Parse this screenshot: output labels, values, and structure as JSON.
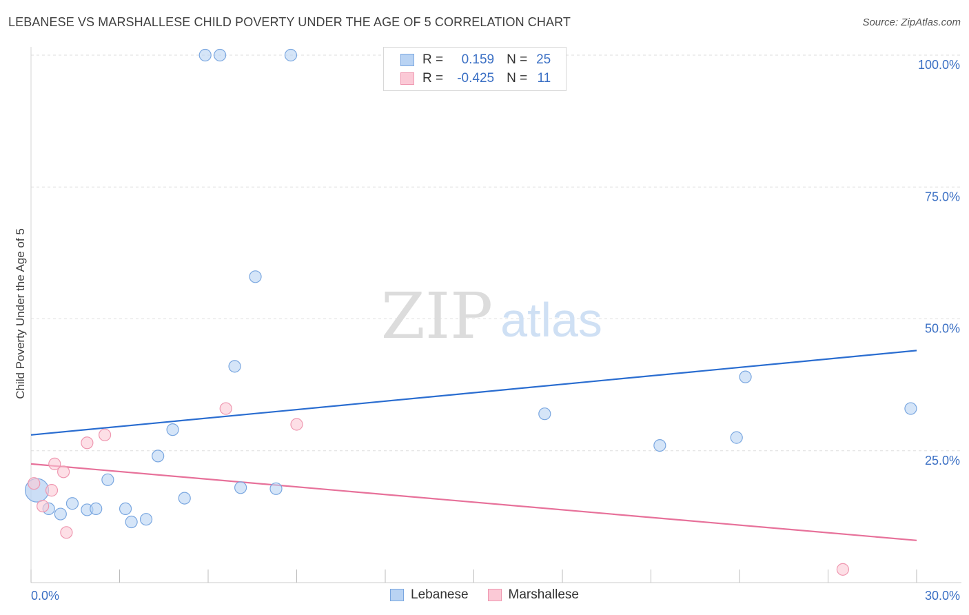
{
  "title": "LEBANESE VS MARSHALLESE CHILD POVERTY UNDER THE AGE OF 5 CORRELATION CHART",
  "source": "Source: ZipAtlas.com",
  "watermark": {
    "zip": "ZIP",
    "atlas": "atlas"
  },
  "stats": [
    {
      "r_label": "R =",
      "r_value": "0.159",
      "n_label": "N =",
      "n_value": "25",
      "color": "#b9d3f3",
      "border": "#7aa7e0"
    },
    {
      "r_label": "R =",
      "r_value": "-0.425",
      "n_label": "N =",
      "n_value": "11",
      "color": "#fbc9d6",
      "border": "#ef97b0"
    }
  ],
  "chart_data": {
    "type": "scatter",
    "ylabel": "Child Poverty Under the Age of 5",
    "xlim": [
      0,
      30
    ],
    "ylim": [
      0,
      100
    ],
    "x_tick_labels": [
      "0.0%",
      "30.0%"
    ],
    "y_tick_labels": [
      {
        "value": 25,
        "label": "25.0%"
      },
      {
        "value": 50,
        "label": "50.0%"
      },
      {
        "value": 75,
        "label": "75.0%"
      },
      {
        "value": 100,
        "label": "100.0%"
      }
    ],
    "grid": true,
    "legend_position": "bottom-center",
    "series": [
      {
        "name": "Lebanese",
        "color": "#b9d3f3",
        "stroke": "#7aa7e0",
        "line_color": "#2a6dd0",
        "trend": [
          [
            0,
            28.0
          ],
          [
            30,
            44.0
          ]
        ],
        "points": [
          [
            0.2,
            17.5
          ],
          [
            0.6,
            14.0
          ],
          [
            1.0,
            13.0
          ],
          [
            1.4,
            15.0
          ],
          [
            1.9,
            13.8
          ],
          [
            2.2,
            14.0
          ],
          [
            2.6,
            19.5
          ],
          [
            3.2,
            14.0
          ],
          [
            3.4,
            11.5
          ],
          [
            3.9,
            12.0
          ],
          [
            4.3,
            24.0
          ],
          [
            4.8,
            29.0
          ],
          [
            5.2,
            16.0
          ],
          [
            5.9,
            100.0
          ],
          [
            6.4,
            100.0
          ],
          [
            6.9,
            41.0
          ],
          [
            7.1,
            18.0
          ],
          [
            7.6,
            58.0
          ],
          [
            8.3,
            17.8
          ],
          [
            8.8,
            100.0
          ],
          [
            17.4,
            32.0
          ],
          [
            21.3,
            26.0
          ],
          [
            23.9,
            27.5
          ],
          [
            24.2,
            39.0
          ],
          [
            29.8,
            33.0
          ]
        ],
        "big_point_index": 0
      },
      {
        "name": "Marshallese",
        "color": "#fbc9d6",
        "stroke": "#ef97b0",
        "line_color": "#e7719a",
        "trend": [
          [
            0,
            22.5
          ],
          [
            30,
            8.0
          ]
        ],
        "points": [
          [
            0.1,
            18.8
          ],
          [
            0.4,
            14.5
          ],
          [
            0.7,
            17.5
          ],
          [
            0.8,
            22.5
          ],
          [
            1.1,
            21.0
          ],
          [
            1.2,
            9.5
          ],
          [
            1.9,
            26.5
          ],
          [
            2.5,
            28.0
          ],
          [
            6.6,
            33.0
          ],
          [
            9.0,
            30.0
          ],
          [
            27.5,
            2.5
          ]
        ]
      }
    ]
  }
}
